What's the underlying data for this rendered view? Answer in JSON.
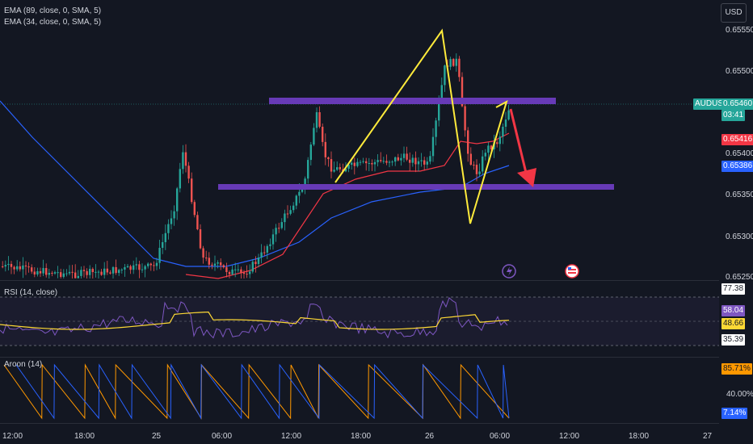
{
  "indicators": {
    "ema89": "EMA (89, close, 0, SMA, 5)",
    "ema34": "EMA (34, close, 0, SMA, 5)",
    "rsi": "RSI (14, close)",
    "aroon": "Aroon (14)"
  },
  "currency_button": "USD",
  "price_axis": [
    "0.65550",
    "0.65500",
    "0.65400",
    "0.65350",
    "0.65300",
    "0.65250"
  ],
  "price_tags": {
    "symbol": "AUDUSD",
    "last": "0.65460",
    "countdown": "03:41",
    "ema34": "0.65416",
    "ema89": "0.65386"
  },
  "rsi_axis": {
    "upper": "77.38",
    "value": "58.04",
    "signal": "48.66",
    "lower": "35.39"
  },
  "aroon_axis": {
    "up": "85.71%",
    "mid": "40.00%",
    "down": "7.14%"
  },
  "time_axis": [
    "12:00",
    "18:00",
    "25",
    "06:00",
    "12:00",
    "18:00",
    "26",
    "06:00",
    "12:00",
    "18:00",
    "27"
  ],
  "colors": {
    "bg": "#131722",
    "up": "#26a69a",
    "down": "#ef5350",
    "ema34": "#f23645",
    "ema89": "#2962ff",
    "zone": "#673ab7",
    "pattern": "#ffeb3b",
    "arrow": "#f23645",
    "rsi": "#7e57c2",
    "rsi_ma": "#fdd835",
    "aroon_up": "#ff9800",
    "aroon_down": "#2962ff"
  },
  "icons": [
    "lightning-icon",
    "us-flag-icon"
  ]
}
